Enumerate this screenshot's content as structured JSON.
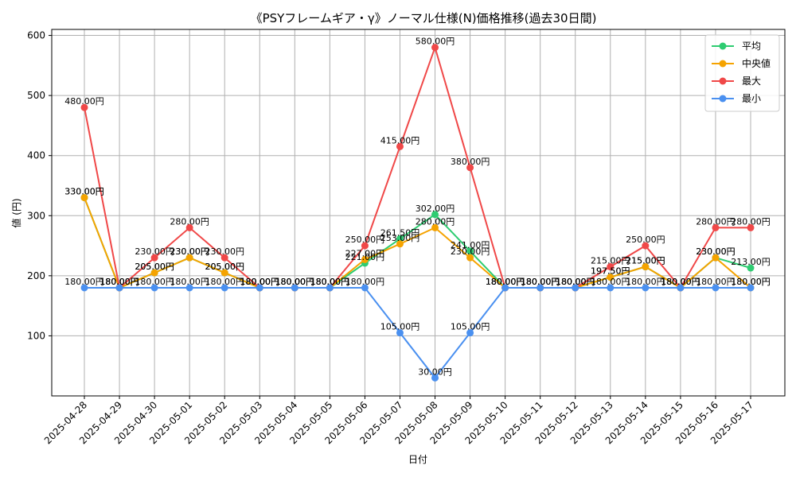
{
  "chart_data": {
    "type": "line",
    "title": "《PSYフレームギア・γ》ノーマル仕様(N)価格推移(過去30日間)",
    "xlabel": "日付",
    "ylabel": "値 (円)",
    "ylim": [
      0,
      610
    ],
    "yticks": [
      100,
      200,
      300,
      400,
      500,
      600
    ],
    "grid": true,
    "legend_position": "top-right",
    "value_suffix": "円",
    "categories": [
      "2025-04-28",
      "2025-04-29",
      "2025-04-30",
      "2025-05-01",
      "2025-05-02",
      "2025-05-03",
      "2025-05-04",
      "2025-05-05",
      "2025-05-06",
      "2025-05-07",
      "2025-05-08",
      "2025-05-09",
      "2025-05-10",
      "2025-05-11",
      "2025-05-12",
      "2025-05-13",
      "2025-05-14",
      "2025-05-15",
      "2025-05-16",
      "2025-05-17"
    ],
    "series": [
      {
        "name": "平均",
        "color": "#2ecc71",
        "values": [
          330,
          180,
          205,
          230,
          205,
          180,
          180,
          180,
          221,
          261.5,
          302,
          241,
          180,
          180,
          180,
          197.5,
          215,
          180,
          230,
          213
        ]
      },
      {
        "name": "中央値",
        "color": "#f5a300",
        "values": [
          330,
          180,
          205,
          230,
          205,
          180,
          180,
          180,
          227,
          253,
          280,
          230,
          180,
          180,
          180,
          197.5,
          215,
          180,
          230,
          180
        ]
      },
      {
        "name": "最大",
        "color": "#f04848",
        "values": [
          480,
          180,
          230,
          280,
          230,
          180,
          180,
          180,
          250,
          415,
          580,
          380,
          180,
          180,
          180,
          215,
          250,
          180,
          280,
          280
        ]
      },
      {
        "name": "最小",
        "color": "#4a90f0",
        "values": [
          180,
          180,
          180,
          180,
          180,
          180,
          180,
          180,
          180,
          105,
          30,
          105,
          180,
          180,
          180,
          180,
          180,
          180,
          180,
          180
        ]
      }
    ]
  }
}
